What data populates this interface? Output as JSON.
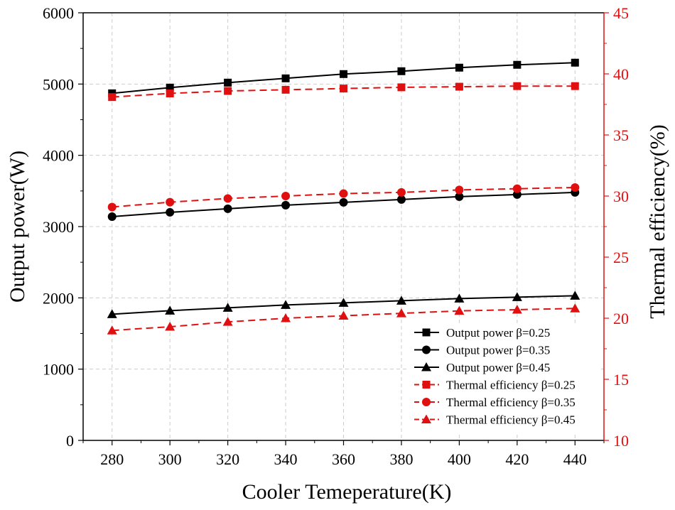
{
  "chart_data": {
    "type": "line",
    "title": "",
    "xlabel": "Cooler Temeperature(K)",
    "ylabel": "Output power(W)",
    "y2label": "Thermal efficiency(%)",
    "x": [
      280,
      300,
      320,
      340,
      360,
      380,
      400,
      420,
      440
    ],
    "xlim": [
      270,
      450
    ],
    "ylim": [
      0,
      6000
    ],
    "y2lim": [
      10,
      45
    ],
    "xticks": [
      "280",
      "300",
      "320",
      "340",
      "360",
      "380",
      "400",
      "420",
      "440"
    ],
    "yticks": [
      "0",
      "1000",
      "2000",
      "3000",
      "4000",
      "5000",
      "6000"
    ],
    "y2ticks": [
      "10",
      "15",
      "20",
      "25",
      "30",
      "35",
      "40",
      "45"
    ],
    "grid": true,
    "legend_position": "bottom-right",
    "colors": {
      "power": "#000000",
      "efficiency": "#e01010",
      "grid": "#cccccc"
    },
    "series": [
      {
        "name": "Output power β=0.25",
        "axis": "left",
        "marker": "square",
        "dash": false,
        "color": "#000000",
        "values": [
          4870,
          4950,
          5020,
          5080,
          5140,
          5180,
          5230,
          5270,
          5300
        ]
      },
      {
        "name": "Output power β=0.35",
        "axis": "left",
        "marker": "circle",
        "dash": false,
        "color": "#000000",
        "values": [
          3140,
          3200,
          3250,
          3300,
          3340,
          3380,
          3420,
          3450,
          3480
        ]
      },
      {
        "name": "Output power β=0.45",
        "axis": "left",
        "marker": "triangle",
        "dash": false,
        "color": "#000000",
        "values": [
          1770,
          1820,
          1860,
          1900,
          1930,
          1960,
          1990,
          2010,
          2030
        ]
      },
      {
        "name": "Thermal efficiency β=0.25",
        "axis": "right",
        "marker": "square",
        "dash": true,
        "color": "#e01010",
        "values": [
          38.1,
          38.4,
          38.6,
          38.7,
          38.8,
          38.9,
          38.95,
          39.0,
          39.0
        ]
      },
      {
        "name": "Thermal efficiency β=0.35",
        "axis": "right",
        "marker": "circle",
        "dash": true,
        "color": "#e01010",
        "values": [
          29.1,
          29.5,
          29.8,
          30.0,
          30.2,
          30.3,
          30.5,
          30.6,
          30.7
        ]
      },
      {
        "name": "Thermal efficiency β=0.45",
        "axis": "right",
        "marker": "triangle",
        "dash": true,
        "color": "#e01010",
        "values": [
          19.0,
          19.3,
          19.7,
          20.0,
          20.2,
          20.4,
          20.6,
          20.7,
          20.8
        ]
      }
    ]
  }
}
